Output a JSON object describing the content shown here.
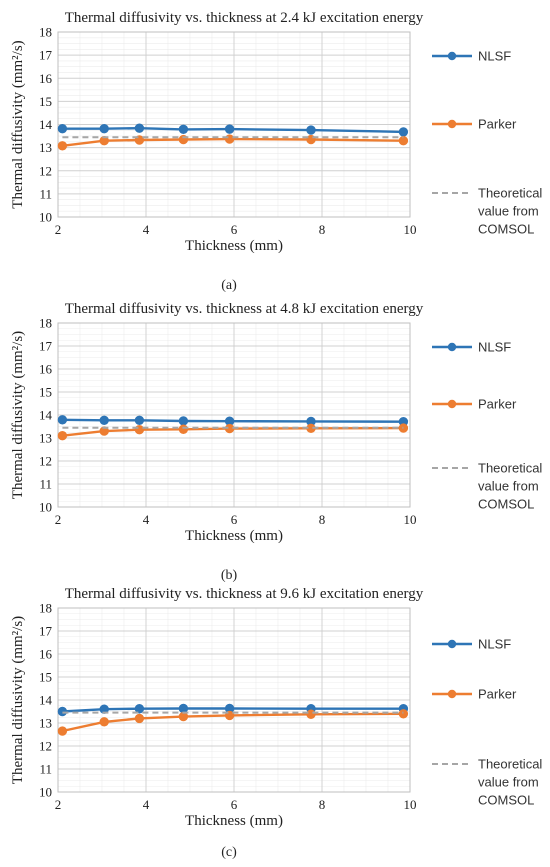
{
  "colors": {
    "nlsf": "#2e75b6",
    "parker": "#ed7d31",
    "theory": "#a6a6a6",
    "grid_major": "#d0d0d0",
    "grid_minor": "#ececec"
  },
  "chart_data": [
    {
      "type": "line",
      "panel_label": "(a)",
      "title": "Thermal diffusivity vs. thickness at 2.4 kJ excitation energy",
      "xlabel": "Thickness (mm)",
      "ylabel": "Thermal diffusivity (mm²/s)",
      "xlim": [
        2,
        10
      ],
      "ylim": [
        10,
        18
      ],
      "xticks": [
        2,
        4,
        6,
        8,
        10
      ],
      "yticks": [
        10,
        11,
        12,
        13,
        14,
        15,
        16,
        17,
        18
      ],
      "grid": true,
      "legend_position": "right",
      "legend": [
        "NLSF",
        "Parker",
        "Theoretical value from COMSOL"
      ],
      "series": [
        {
          "name": "NLSF",
          "x": [
            2.1,
            3.05,
            3.85,
            4.85,
            5.9,
            7.75,
            9.85
          ],
          "y": [
            13.82,
            13.82,
            13.84,
            13.79,
            13.8,
            13.76,
            13.68
          ]
        },
        {
          "name": "Parker",
          "x": [
            2.1,
            3.05,
            3.85,
            4.85,
            5.9,
            7.75,
            9.85
          ],
          "y": [
            13.08,
            13.3,
            13.33,
            13.35,
            13.37,
            13.35,
            13.3
          ]
        },
        {
          "name": "Theoretical value from COMSOL",
          "x": [
            2.1,
            9.85
          ],
          "y": [
            13.45,
            13.45
          ]
        }
      ]
    },
    {
      "type": "line",
      "panel_label": "(b)",
      "title": "Thermal diffusivity vs. thickness at 4.8 kJ excitation energy",
      "xlabel": "Thickness (mm)",
      "ylabel": "Thermal diffusivity (mm²/s)",
      "xlim": [
        2,
        10
      ],
      "ylim": [
        10,
        18
      ],
      "xticks": [
        2,
        4,
        6,
        8,
        10
      ],
      "yticks": [
        10,
        11,
        12,
        13,
        14,
        15,
        16,
        17,
        18
      ],
      "grid": true,
      "legend_position": "right",
      "legend": [
        "NLSF",
        "Parker",
        "Theoretical value from COMSOL"
      ],
      "series": [
        {
          "name": "NLSF",
          "x": [
            2.1,
            3.05,
            3.85,
            4.85,
            5.9,
            7.75,
            9.85
          ],
          "y": [
            13.79,
            13.77,
            13.77,
            13.74,
            13.73,
            13.72,
            13.71
          ]
        },
        {
          "name": "Parker",
          "x": [
            2.1,
            3.05,
            3.85,
            4.85,
            5.9,
            7.75,
            9.85
          ],
          "y": [
            13.1,
            13.3,
            13.36,
            13.38,
            13.41,
            13.42,
            13.43
          ]
        },
        {
          "name": "Theoretical value from COMSOL",
          "x": [
            2.1,
            9.85
          ],
          "y": [
            13.45,
            13.45
          ]
        }
      ]
    },
    {
      "type": "line",
      "panel_label": "(c)",
      "title": "Thermal diffusivity vs. thickness at 9.6 kJ excitation energy",
      "xlabel": "Thickness (mm)",
      "ylabel": "Thermal diffusivity (mm²/s)",
      "xlim": [
        2,
        10
      ],
      "ylim": [
        10,
        18
      ],
      "xticks": [
        2,
        4,
        6,
        8,
        10
      ],
      "yticks": [
        10,
        11,
        12,
        13,
        14,
        15,
        16,
        17,
        18
      ],
      "grid": true,
      "legend_position": "right",
      "legend": [
        "NLSF",
        "Parker",
        "Theoretical value from COMSOL"
      ],
      "series": [
        {
          "name": "NLSF",
          "x": [
            2.1,
            3.05,
            3.85,
            4.85,
            5.9,
            7.75,
            9.85
          ],
          "y": [
            13.5,
            13.6,
            13.62,
            13.63,
            13.63,
            13.62,
            13.62
          ]
        },
        {
          "name": "Parker",
          "x": [
            2.1,
            3.05,
            3.85,
            4.85,
            5.9,
            7.75,
            9.85
          ],
          "y": [
            12.65,
            13.05,
            13.2,
            13.28,
            13.33,
            13.38,
            13.4
          ]
        },
        {
          "name": "Theoretical value from COMSOL",
          "x": [
            2.1,
            9.85
          ],
          "y": [
            13.45,
            13.45
          ]
        }
      ]
    }
  ]
}
